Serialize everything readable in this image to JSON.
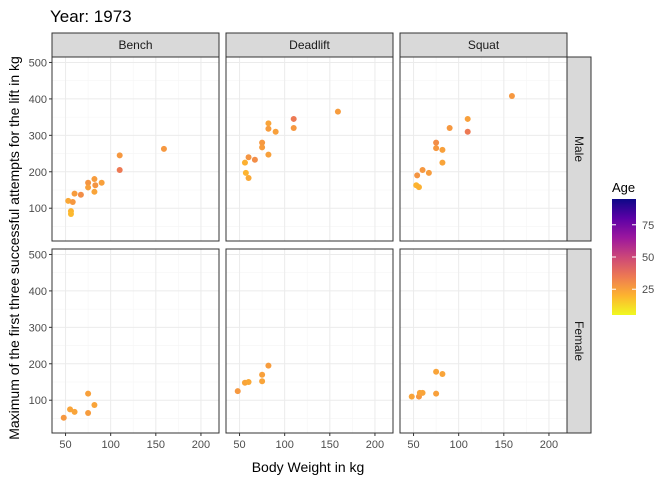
{
  "chart_data": {
    "type": "scatter",
    "title": "Year: 1973",
    "xlabel": "Body Weight in kg",
    "ylabel": "Maximum of the first three successful attempts for the lift in kg",
    "xlim": [
      35,
      220
    ],
    "ylim": [
      10,
      515
    ],
    "x_ticks": [
      "50",
      "100",
      "150",
      "200"
    ],
    "y_ticks": [
      "100",
      "200",
      "300",
      "400",
      "500"
    ],
    "columns": [
      "Bench",
      "Deadlift",
      "Squat"
    ],
    "rows": [
      "Male",
      "Female"
    ],
    "legend": {
      "title": "Age",
      "ticks": [
        "25",
        "50",
        "75"
      ],
      "range": [
        5,
        95
      ],
      "colors": [
        "#f0f921",
        "#fdb42f",
        "#ed7953",
        "#cc4778",
        "#9c179e",
        "#5c01a6",
        "#0d0887"
      ]
    },
    "panels": [
      {
        "lift": "Bench",
        "sex": "Male",
        "points": [
          [
            53,
            120,
            23
          ],
          [
            56,
            92,
            20
          ],
          [
            56,
            84,
            19
          ],
          [
            58,
            117,
            27
          ],
          [
            60,
            140,
            26
          ],
          [
            67,
            137,
            30
          ],
          [
            75,
            170,
            28
          ],
          [
            75,
            157,
            25
          ],
          [
            82,
            180,
            26
          ],
          [
            82,
            145,
            24
          ],
          [
            83,
            163,
            28
          ],
          [
            90,
            170,
            25
          ],
          [
            110,
            245,
            27
          ],
          [
            110,
            205,
            35
          ],
          [
            159,
            263,
            27
          ]
        ]
      },
      {
        "lift": "Deadlift",
        "sex": "Male",
        "points": [
          [
            56,
            225,
            21
          ],
          [
            57,
            197,
            20
          ],
          [
            60,
            183,
            23
          ],
          [
            60,
            240,
            28
          ],
          [
            67,
            233,
            30
          ],
          [
            75,
            280,
            27
          ],
          [
            75,
            267,
            26
          ],
          [
            82,
            333,
            24
          ],
          [
            82,
            318,
            26
          ],
          [
            82,
            247,
            25
          ],
          [
            90,
            310,
            25
          ],
          [
            110,
            345,
            35
          ],
          [
            110,
            320,
            27
          ],
          [
            159,
            365,
            26
          ]
        ]
      },
      {
        "lift": "Squat",
        "sex": "Male",
        "points": [
          [
            53,
            163,
            20
          ],
          [
            54,
            190,
            28
          ],
          [
            56,
            158,
            21
          ],
          [
            60,
            205,
            27
          ],
          [
            67,
            197,
            26
          ],
          [
            75,
            280,
            30
          ],
          [
            75,
            265,
            27
          ],
          [
            82,
            260,
            25
          ],
          [
            82,
            225,
            24
          ],
          [
            90,
            320,
            27
          ],
          [
            110,
            345,
            25
          ],
          [
            110,
            310,
            35
          ],
          [
            159,
            408,
            27
          ]
        ]
      },
      {
        "lift": "Bench",
        "sex": "Female",
        "points": [
          [
            48,
            52,
            27
          ],
          [
            55,
            75,
            24
          ],
          [
            60,
            68,
            24
          ],
          [
            75,
            118,
            25
          ],
          [
            75,
            65,
            26
          ],
          [
            82,
            87,
            24
          ]
        ]
      },
      {
        "lift": "Deadlift",
        "sex": "Female",
        "points": [
          [
            48,
            125,
            27
          ],
          [
            56,
            148,
            24
          ],
          [
            60,
            150,
            23
          ],
          [
            75,
            170,
            25
          ],
          [
            75,
            152,
            24
          ],
          [
            82,
            195,
            26
          ]
        ]
      },
      {
        "lift": "Squat",
        "sex": "Female",
        "points": [
          [
            48,
            110,
            24
          ],
          [
            56,
            110,
            27
          ],
          [
            57,
            120,
            24
          ],
          [
            60,
            120,
            24
          ],
          [
            75,
            178,
            24
          ],
          [
            75,
            118,
            25
          ],
          [
            82,
            172,
            24
          ]
        ]
      }
    ]
  }
}
